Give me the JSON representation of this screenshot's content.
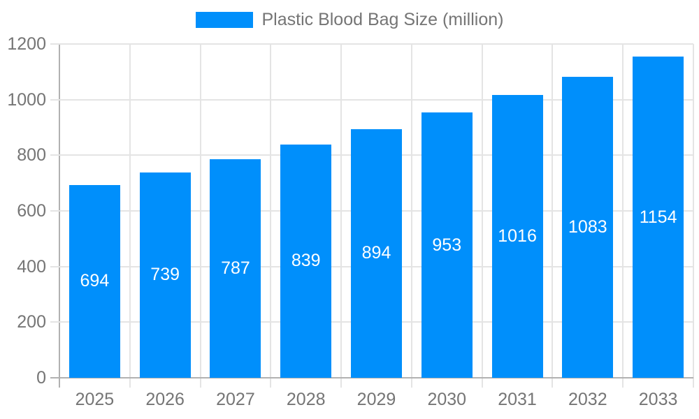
{
  "chart_data": {
    "type": "bar",
    "title": "Plastic Blood Bag Size (million)",
    "categories": [
      "2025",
      "2026",
      "2027",
      "2028",
      "2029",
      "2030",
      "2031",
      "2032",
      "2033"
    ],
    "series": [
      {
        "name": "Plastic Blood Bag Size (million)",
        "values": [
          694,
          739,
          787,
          839,
          894,
          953,
          1016,
          1083,
          1154
        ]
      }
    ],
    "value_labels": [
      "694",
      "739",
      "787",
      "839",
      "894",
      "953",
      "1016",
      "1083",
      "1154"
    ],
    "xlabel": "",
    "ylabel": "",
    "ylim": [
      0,
      1200
    ],
    "yticks": [
      0,
      200,
      400,
      600,
      800,
      1000,
      1200
    ],
    "grid": true,
    "legend_position": "top-center",
    "colors": {
      "bar": "#008FFB",
      "value_label": "#ffffff",
      "axis_text": "#757575",
      "grid_line": "#e4e4e4",
      "axis_line": "#b1b1b1"
    }
  }
}
